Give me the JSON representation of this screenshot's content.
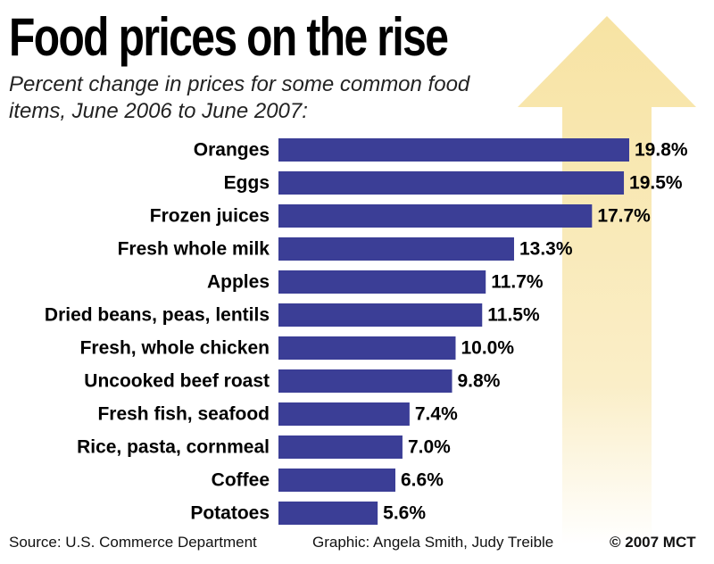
{
  "colors": {
    "bar": "#3b3e96",
    "arrow": "#f7e3a3",
    "label": "#000000"
  },
  "chart_data": {
    "type": "bar",
    "orientation": "horizontal",
    "title": "Food prices on the rise",
    "subtitle": "Percent change in prices for some common food items, June 2006 to June 2007:",
    "categories": [
      "Oranges",
      "Eggs",
      "Frozen juices",
      "Fresh whole milk",
      "Apples",
      "Dried beans, peas, lentils",
      "Fresh, whole chicken",
      "Uncooked beef roast",
      "Fresh fish, seafood",
      "Rice, pasta, cornmeal",
      "Coffee",
      "Potatoes"
    ],
    "values": [
      19.8,
      19.5,
      17.7,
      13.3,
      11.7,
      11.5,
      10.0,
      9.8,
      7.4,
      7.0,
      6.6,
      5.6
    ],
    "value_labels": [
      "19.8%",
      "19.5%",
      "17.7%",
      "13.3%",
      "11.7%",
      "11.5%",
      "10.0%",
      "9.8%",
      "7.4%",
      "7.0%",
      "6.6%",
      "5.6%"
    ],
    "xlabel": "",
    "ylabel": "",
    "xlim": [
      0,
      20
    ],
    "grid": false,
    "legend": "none"
  },
  "footer": {
    "source": "Source: U.S. Commerce Department",
    "credit": "Graphic: Angela Smith, Judy Treible",
    "copyright": "© 2007 MCT"
  }
}
